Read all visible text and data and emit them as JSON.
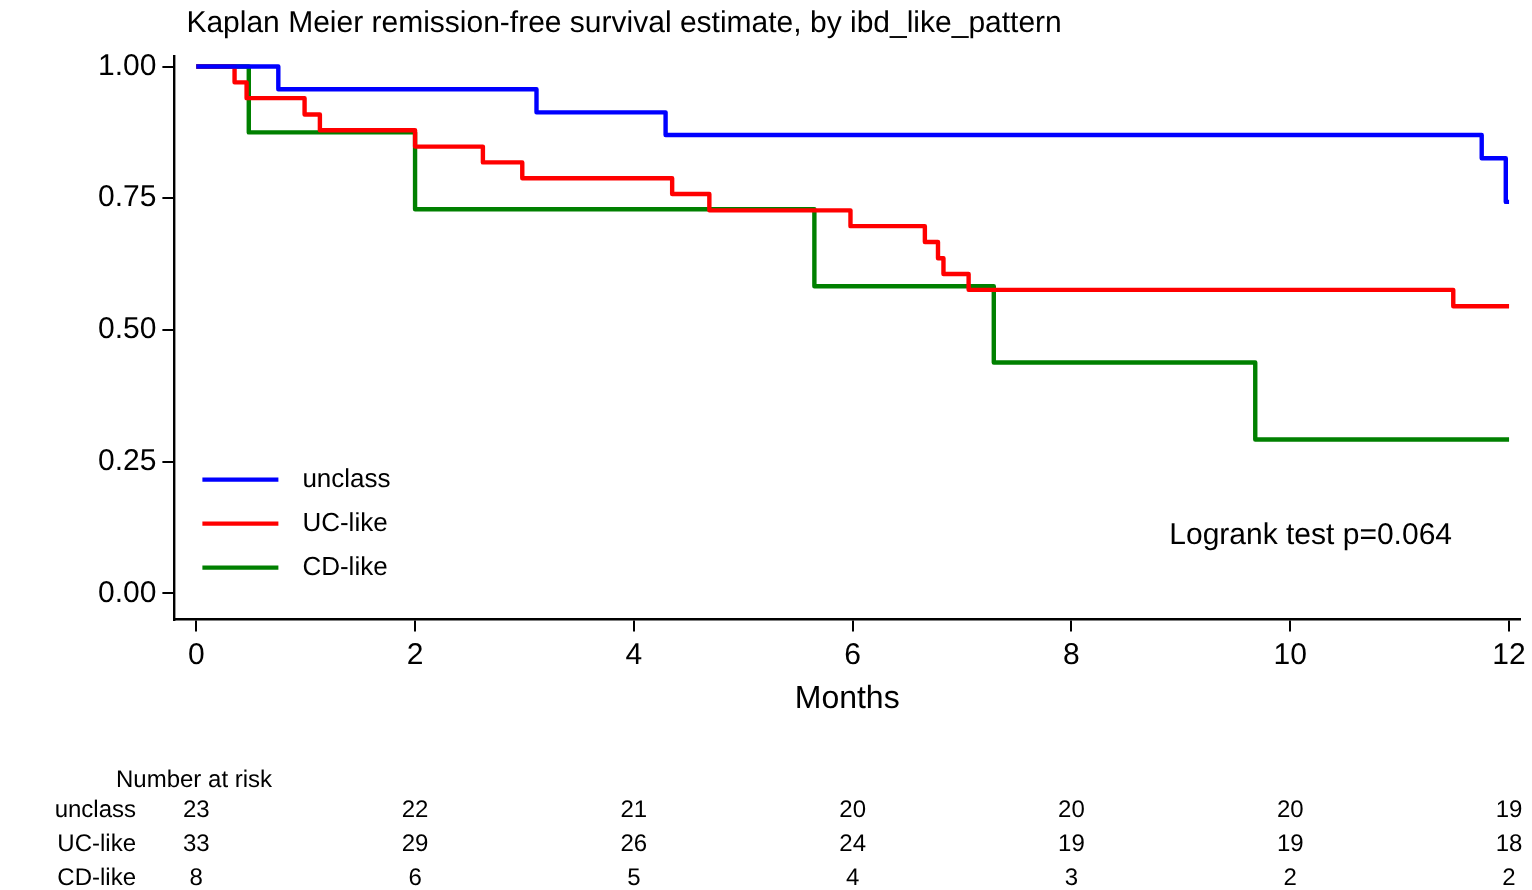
{
  "chart_data": {
    "type": "step",
    "title": "Kaplan Meier remission-free survival estimate, by ibd_like_pattern",
    "xlabel": "Months",
    "series": [
      {
        "name": "unclass",
        "color": "#0000ff",
        "x": [
          0,
          0.75,
          3.11,
          4.29,
          11.75,
          11.97,
          12
        ],
        "values": [
          1,
          0.957,
          0.913,
          0.87,
          0.826,
          0.743,
          0.743
        ]
      },
      {
        "name": "UC-like",
        "color": "#ff0000",
        "x": [
          0,
          0.35,
          0.46,
          0.99,
          1.13,
          2.0,
          2.62,
          2.98,
          4.35,
          4.69,
          5.98,
          6.66,
          6.78,
          6.83,
          7.06,
          11.49,
          12
        ],
        "values": [
          1,
          0.97,
          0.94,
          0.909,
          0.879,
          0.848,
          0.818,
          0.788,
          0.758,
          0.727,
          0.697,
          0.667,
          0.636,
          0.606,
          0.576,
          0.545,
          0.545
        ]
      },
      {
        "name": "CD-like",
        "color": "#008000",
        "x": [
          0,
          0.48,
          2.0,
          5.65,
          7.29,
          9.68,
          12
        ],
        "values": [
          1,
          0.875,
          0.729,
          0.583,
          0.438,
          0.292,
          0.292
        ]
      }
    ],
    "xlim": [
      -0.2,
      12.1
    ],
    "xticks": [
      0,
      2,
      4,
      6,
      8,
      10,
      12
    ],
    "ylim": [
      -0.05,
      1.02
    ],
    "yticks": [
      {
        "value": 0,
        "label": "0.00"
      },
      {
        "value": 0.25,
        "label": "0.25"
      },
      {
        "value": 0.5,
        "label": "0.50"
      },
      {
        "value": 0.75,
        "label": "0.75"
      },
      {
        "value": 1,
        "label": "1.00"
      }
    ],
    "grid": false,
    "legend": "bottom left",
    "marker": "none",
    "line_style": "solid",
    "annotations": [
      "Logrank test p=0.064",
      "Number at risk",
      "unclass",
      "23",
      "22",
      "21",
      "20",
      "20",
      "20",
      "19",
      "UC-like",
      "33",
      "29",
      "26",
      "24",
      "19",
      "19",
      "18",
      "CD-like",
      "8",
      "6",
      "5",
      "4",
      "3",
      "2",
      "2"
    ]
  }
}
